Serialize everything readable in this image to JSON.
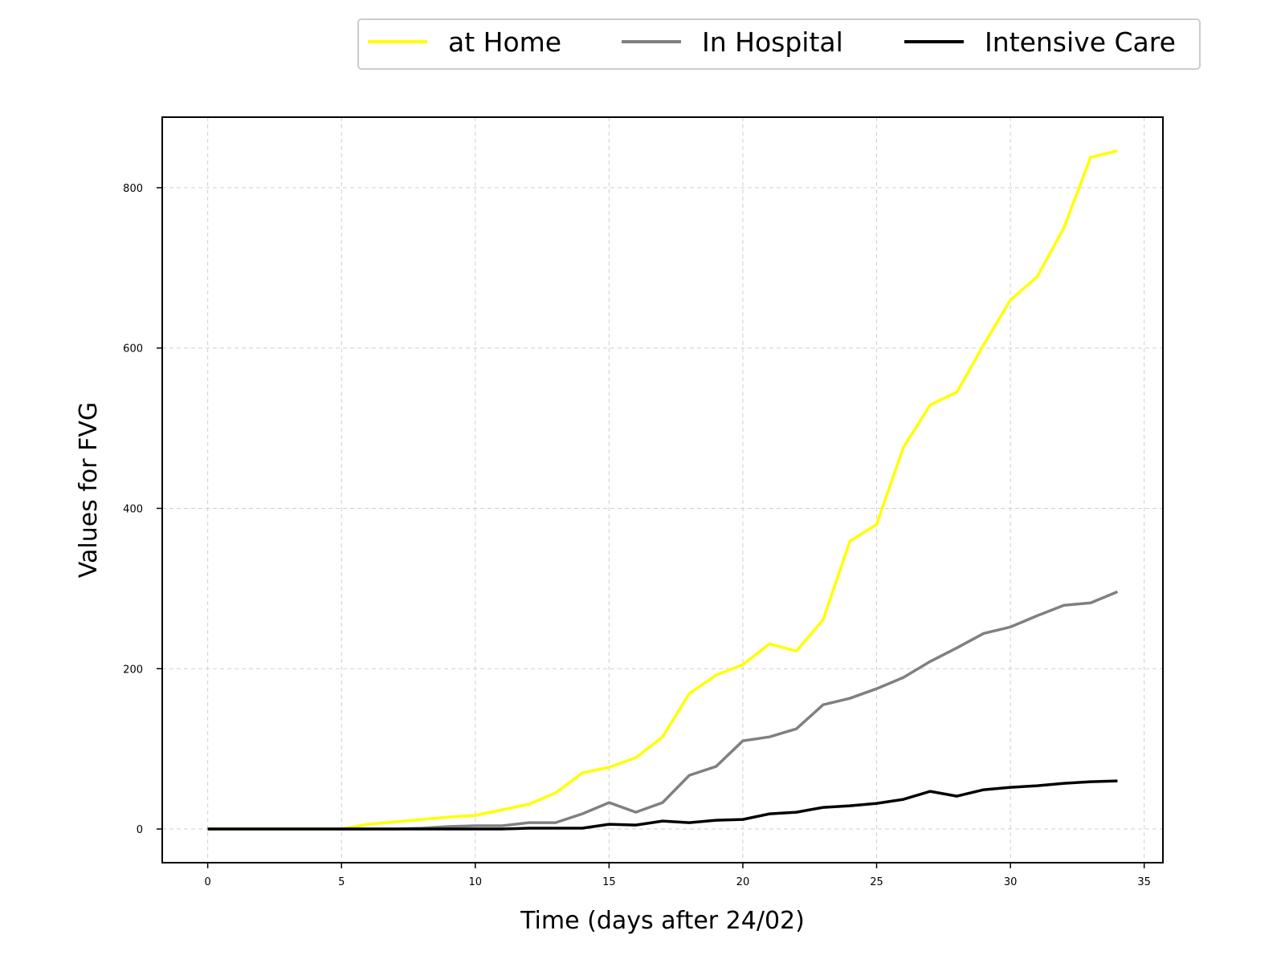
{
  "chart_data": {
    "type": "line",
    "title": "",
    "xlabel": "Time (days after 24/02)",
    "ylabel": "Values for FVG",
    "xlim": [
      -1.7,
      35.7
    ],
    "ylim": [
      -42,
      888
    ],
    "xticks": [
      0,
      5,
      10,
      15,
      20,
      25,
      30,
      35
    ],
    "yticks": [
      0,
      200,
      400,
      600,
      800
    ],
    "grid": true,
    "legend_position": "top-right (above plot)",
    "x": [
      0,
      1,
      2,
      3,
      4,
      5,
      6,
      7,
      8,
      9,
      10,
      11,
      12,
      13,
      14,
      15,
      16,
      17,
      18,
      19,
      20,
      21,
      22,
      23,
      24,
      25,
      26,
      27,
      28,
      29,
      30,
      31,
      32,
      33,
      34
    ],
    "series": [
      {
        "name": "at Home",
        "color": "#ffff00",
        "values": [
          0,
          0,
          0,
          0,
          0,
          0,
          6,
          9,
          12,
          15,
          17,
          24,
          31,
          45,
          70,
          77,
          89,
          115,
          169,
          192,
          205,
          231,
          222,
          261,
          359,
          380,
          476,
          529,
          545,
          604,
          660,
          689,
          750,
          838,
          846
        ]
      },
      {
        "name": "In Hospital",
        "color": "#808080",
        "values": [
          0,
          0,
          0,
          0,
          0,
          0,
          0,
          0,
          1,
          3,
          4,
          4,
          8,
          8,
          19,
          33,
          21,
          33,
          67,
          78,
          110,
          115,
          125,
          155,
          163,
          175,
          189,
          209,
          226,
          244,
          252,
          266,
          279,
          282,
          296
        ]
      },
      {
        "name": "Intensive Care",
        "color": "#000000",
        "values": [
          0,
          0,
          0,
          0,
          0,
          0,
          0,
          0,
          0,
          0,
          0,
          0,
          1,
          1,
          1,
          6,
          5,
          10,
          8,
          11,
          12,
          19,
          21,
          27,
          29,
          32,
          37,
          47,
          41,
          49,
          52,
          54,
          57,
          59,
          60
        ]
      }
    ]
  }
}
